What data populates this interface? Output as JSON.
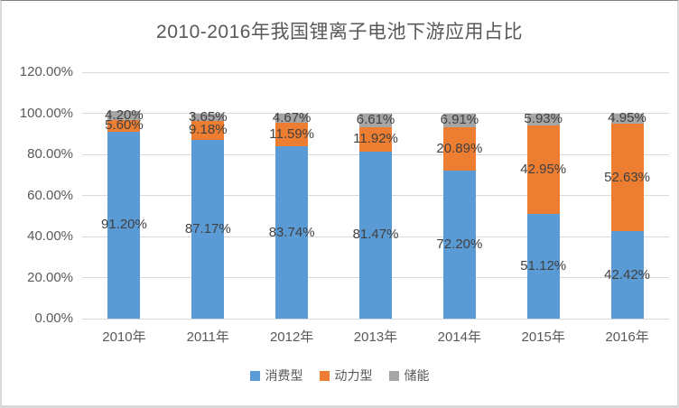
{
  "chart_data": {
    "type": "bar",
    "stacked": true,
    "title": "2010-2016年我国锂离子电池下游应用占比",
    "categories": [
      "2010年",
      "2011年",
      "2012年",
      "2013年",
      "2014年",
      "2015年",
      "2016年"
    ],
    "series": [
      {
        "name": "消费型",
        "key": "consumer-type",
        "color": "#5B9BD5",
        "values": [
          91.2,
          87.17,
          83.74,
          81.47,
          72.2,
          51.12,
          42.42
        ],
        "labels": [
          "91.20%",
          "87.17%",
          "83.74%",
          "81.47%",
          "72.20%",
          "51.12%",
          "42.42%"
        ]
      },
      {
        "name": "动力型",
        "key": "power-type",
        "color": "#ED7D31",
        "values": [
          5.6,
          9.18,
          11.59,
          11.92,
          20.89,
          42.95,
          52.63
        ],
        "labels": [
          "5.60%",
          "9.18%",
          "11.59%",
          "11.92%",
          "20.89%",
          "42.95%",
          "52.63%"
        ]
      },
      {
        "name": "储能",
        "key": "energy-storage",
        "color": "#A5A5A5",
        "values": [
          4.2,
          3.65,
          4.67,
          6.61,
          6.91,
          5.93,
          4.95
        ],
        "labels": [
          "4.20%",
          "3.65%",
          "4.67%",
          "6.61%",
          "6.91%",
          "5.93%",
          "4.95%"
        ]
      }
    ],
    "y_axis": {
      "min": 0,
      "max": 120,
      "step": 20,
      "tick_labels": [
        "0.00%",
        "20.00%",
        "40.00%",
        "60.00%",
        "80.00%",
        "100.00%",
        "120.00%"
      ]
    },
    "xlabel": "",
    "ylabel": "",
    "grid": true,
    "legend_position": "bottom",
    "colors": {
      "title_text": "#595959",
      "axis_text": "#595959",
      "data_label_text": "#404040",
      "gridline": "#D9D9D9",
      "background": "#FFFFFF"
    }
  }
}
